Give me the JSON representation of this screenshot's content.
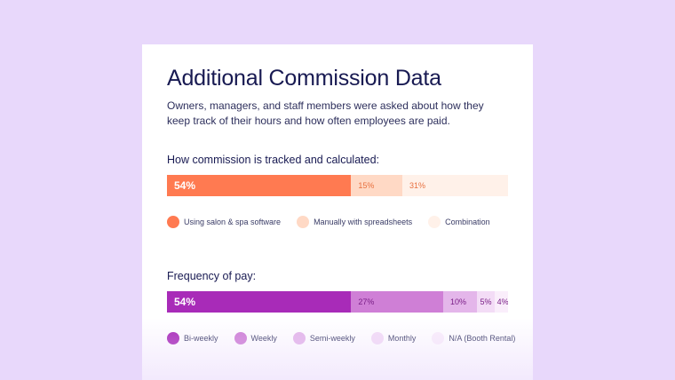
{
  "title": "Additional Commission Data",
  "subtitle": "Owners, managers, and staff members were asked about how they keep track of their hours and how often employees are paid.",
  "chart_data": [
    {
      "type": "bar",
      "orientation": "horizontal-stacked",
      "title": "How commission is tracked and calculated:",
      "series": [
        {
          "name": "Using salon & spa software",
          "value": 54,
          "label": "54%",
          "color": "#ff7a51",
          "text_color": "#ffffff"
        },
        {
          "name": "Manually with spreadsheets",
          "value": 15,
          "label": "15%",
          "color": "#ffd9c5",
          "text_color": "#e8703f"
        },
        {
          "name": "Combination",
          "value": 31,
          "label": "31%",
          "color": "#fff1e9",
          "text_color": "#e8703f"
        }
      ],
      "legend": "bottom"
    },
    {
      "type": "bar",
      "orientation": "horizontal-stacked",
      "title": "Frequency of pay:",
      "series": [
        {
          "name": "Bi-weekly",
          "value": 54,
          "label": "54%",
          "color": "#a82bb8",
          "text_color": "#ffffff"
        },
        {
          "name": "Weekly",
          "value": 27,
          "label": "27%",
          "color": "#cf7fd6",
          "text_color": "#7a1f87"
        },
        {
          "name": "Semi-weekly",
          "value": 10,
          "label": "10%",
          "color": "#e4b6ea",
          "text_color": "#7a1f87"
        },
        {
          "name": "Monthly",
          "value": 5,
          "label": "5%",
          "color": "#f3dcf6",
          "text_color": "#7a1f87"
        },
        {
          "name": "N/A (Booth Rental)",
          "value": 4,
          "label": "4%",
          "color": "#faeefb",
          "text_color": "#7a1f87"
        }
      ],
      "legend": "bottom"
    }
  ]
}
